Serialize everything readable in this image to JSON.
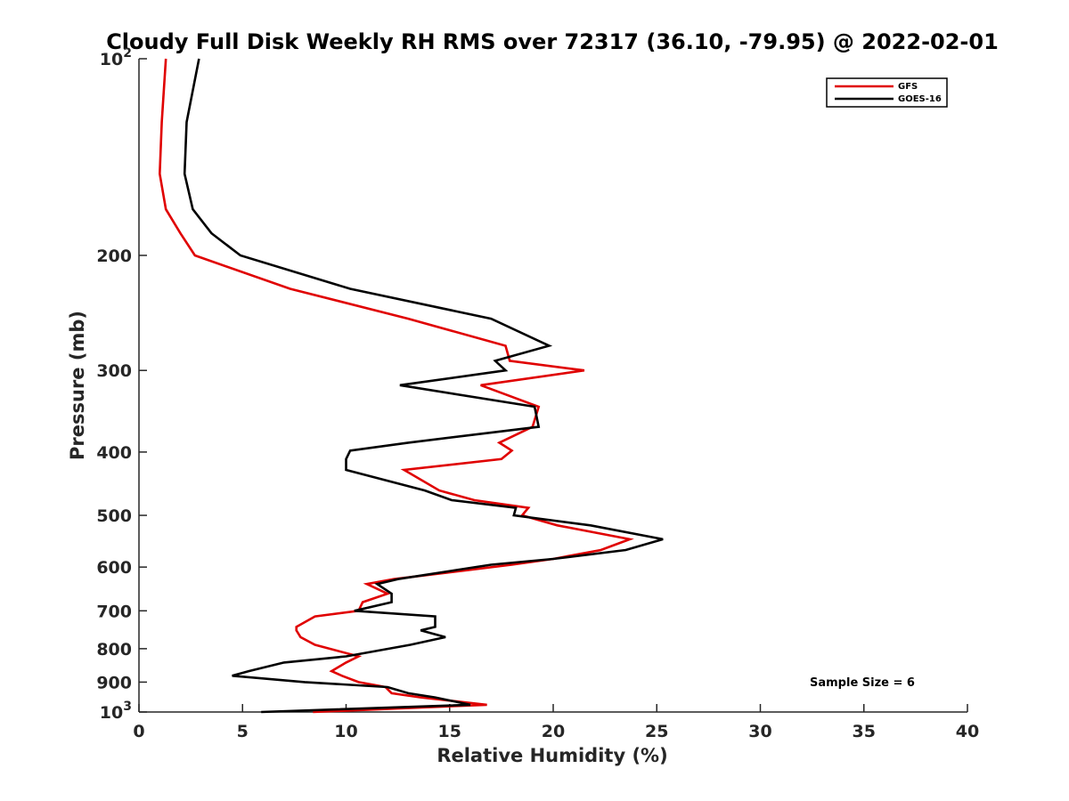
{
  "chart_data": {
    "type": "line",
    "title": "Cloudy Full Disk Weekly RH RMS over 72317 (36.10, -79.95) @ 2022-02-01",
    "xlabel": "Relative Humidity (%)",
    "ylabel": "Pressure (mb)",
    "xlim": [
      0,
      40
    ],
    "ylim": [
      100,
      1000
    ],
    "y_scale": "log",
    "y_reversed": true,
    "grid": false,
    "legend_position": "top-right",
    "x_ticks": [
      "0",
      "5",
      "10",
      "15",
      "20",
      "25",
      "30",
      "35",
      "40"
    ],
    "y_ticks": [
      {
        "value": 100,
        "base": "10",
        "exp": "2"
      },
      {
        "value": 200,
        "label": "200"
      },
      {
        "value": 300,
        "label": "300"
      },
      {
        "value": 400,
        "label": "400"
      },
      {
        "value": 500,
        "label": "500"
      },
      {
        "value": 600,
        "label": "600"
      },
      {
        "value": 700,
        "label": "700"
      },
      {
        "value": 800,
        "label": "800"
      },
      {
        "value": 900,
        "label": "900"
      },
      {
        "value": 1000,
        "base": "10",
        "exp": "3"
      }
    ],
    "annotation": "Sample Size = 6",
    "series": [
      {
        "name": "GFS",
        "color": "#e00000",
        "points": [
          [
            1.3,
            100
          ],
          [
            1.1,
            125
          ],
          [
            1.0,
            150
          ],
          [
            1.3,
            170
          ],
          [
            2.0,
            185
          ],
          [
            2.7,
            200
          ],
          [
            7.3,
            225
          ],
          [
            13.0,
            250
          ],
          [
            17.7,
            275
          ],
          [
            17.9,
            290
          ],
          [
            21.5,
            300
          ],
          [
            16.5,
            316
          ],
          [
            19.3,
            341
          ],
          [
            19.0,
            366
          ],
          [
            17.4,
            387
          ],
          [
            18.0,
            398
          ],
          [
            17.5,
            410
          ],
          [
            12.8,
            426
          ],
          [
            14.5,
            458
          ],
          [
            16.2,
            474
          ],
          [
            18.8,
            487
          ],
          [
            18.5,
            500
          ],
          [
            20.2,
            518
          ],
          [
            23.7,
            544
          ],
          [
            22.3,
            565
          ],
          [
            20.0,
            583
          ],
          [
            18.0,
            595
          ],
          [
            12.3,
            626
          ],
          [
            11.0,
            637
          ],
          [
            12.0,
            659
          ],
          [
            10.8,
            679
          ],
          [
            10.6,
            700
          ],
          [
            8.5,
            714
          ],
          [
            7.6,
            741
          ],
          [
            7.6,
            750
          ],
          [
            7.8,
            768
          ],
          [
            8.5,
            789
          ],
          [
            10.6,
            822
          ],
          [
            10.0,
            840
          ],
          [
            9.3,
            866
          ],
          [
            9.8,
            880
          ],
          [
            10.6,
            900
          ],
          [
            11.9,
            916
          ],
          [
            12.2,
            936
          ],
          [
            13.6,
            950
          ],
          [
            16.8,
            975
          ],
          [
            8.4,
            1000
          ]
        ]
      },
      {
        "name": "GOES-16",
        "color": "#000000",
        "points": [
          [
            2.9,
            100
          ],
          [
            2.3,
            125
          ],
          [
            2.2,
            150
          ],
          [
            2.6,
            170
          ],
          [
            3.5,
            185
          ],
          [
            4.9,
            200
          ],
          [
            10.2,
            225
          ],
          [
            17.0,
            250
          ],
          [
            19.8,
            275
          ],
          [
            17.2,
            290
          ],
          [
            17.7,
            300
          ],
          [
            12.6,
            316
          ],
          [
            19.1,
            341
          ],
          [
            19.3,
            366
          ],
          [
            13.0,
            387
          ],
          [
            10.2,
            398
          ],
          [
            10.0,
            410
          ],
          [
            10.0,
            426
          ],
          [
            13.8,
            458
          ],
          [
            15.1,
            474
          ],
          [
            18.2,
            487
          ],
          [
            18.1,
            500
          ],
          [
            21.8,
            518
          ],
          [
            25.3,
            544
          ],
          [
            23.5,
            565
          ],
          [
            20.0,
            583
          ],
          [
            17.0,
            595
          ],
          [
            12.5,
            626
          ],
          [
            11.5,
            637
          ],
          [
            12.2,
            659
          ],
          [
            12.2,
            679
          ],
          [
            10.4,
            700
          ],
          [
            14.3,
            714
          ],
          [
            14.3,
            741
          ],
          [
            13.6,
            750
          ],
          [
            14.8,
            768
          ],
          [
            13.1,
            789
          ],
          [
            10.0,
            822
          ],
          [
            7.0,
            840
          ],
          [
            5.3,
            866
          ],
          [
            4.5,
            880
          ],
          [
            8.0,
            900
          ],
          [
            12.0,
            916
          ],
          [
            13.0,
            936
          ],
          [
            14.3,
            950
          ],
          [
            16.0,
            975
          ],
          [
            5.9,
            1000
          ]
        ]
      }
    ]
  }
}
